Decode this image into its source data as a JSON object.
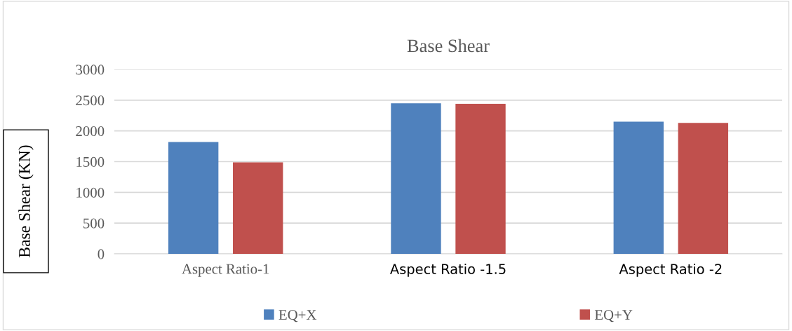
{
  "chart_data": {
    "type": "bar",
    "title": "Base Shear",
    "ylabel": "Base Shear (KN)",
    "categories": [
      "Aspect Ratio-1",
      "Aspect Ratio -1.5",
      "Aspect Ratio -2"
    ],
    "series": [
      {
        "name": "EQ+X",
        "color": "#4f81bd",
        "values": [
          1820,
          2450,
          2150
        ]
      },
      {
        "name": "EQ+Y",
        "color": "#c0504d",
        "values": [
          1490,
          2440,
          2130
        ]
      }
    ],
    "ylim": [
      0,
      3000
    ],
    "yticks": [
      0,
      500,
      1000,
      1500,
      2000,
      2500,
      3000
    ],
    "grid": "y",
    "legend": "bottom"
  }
}
